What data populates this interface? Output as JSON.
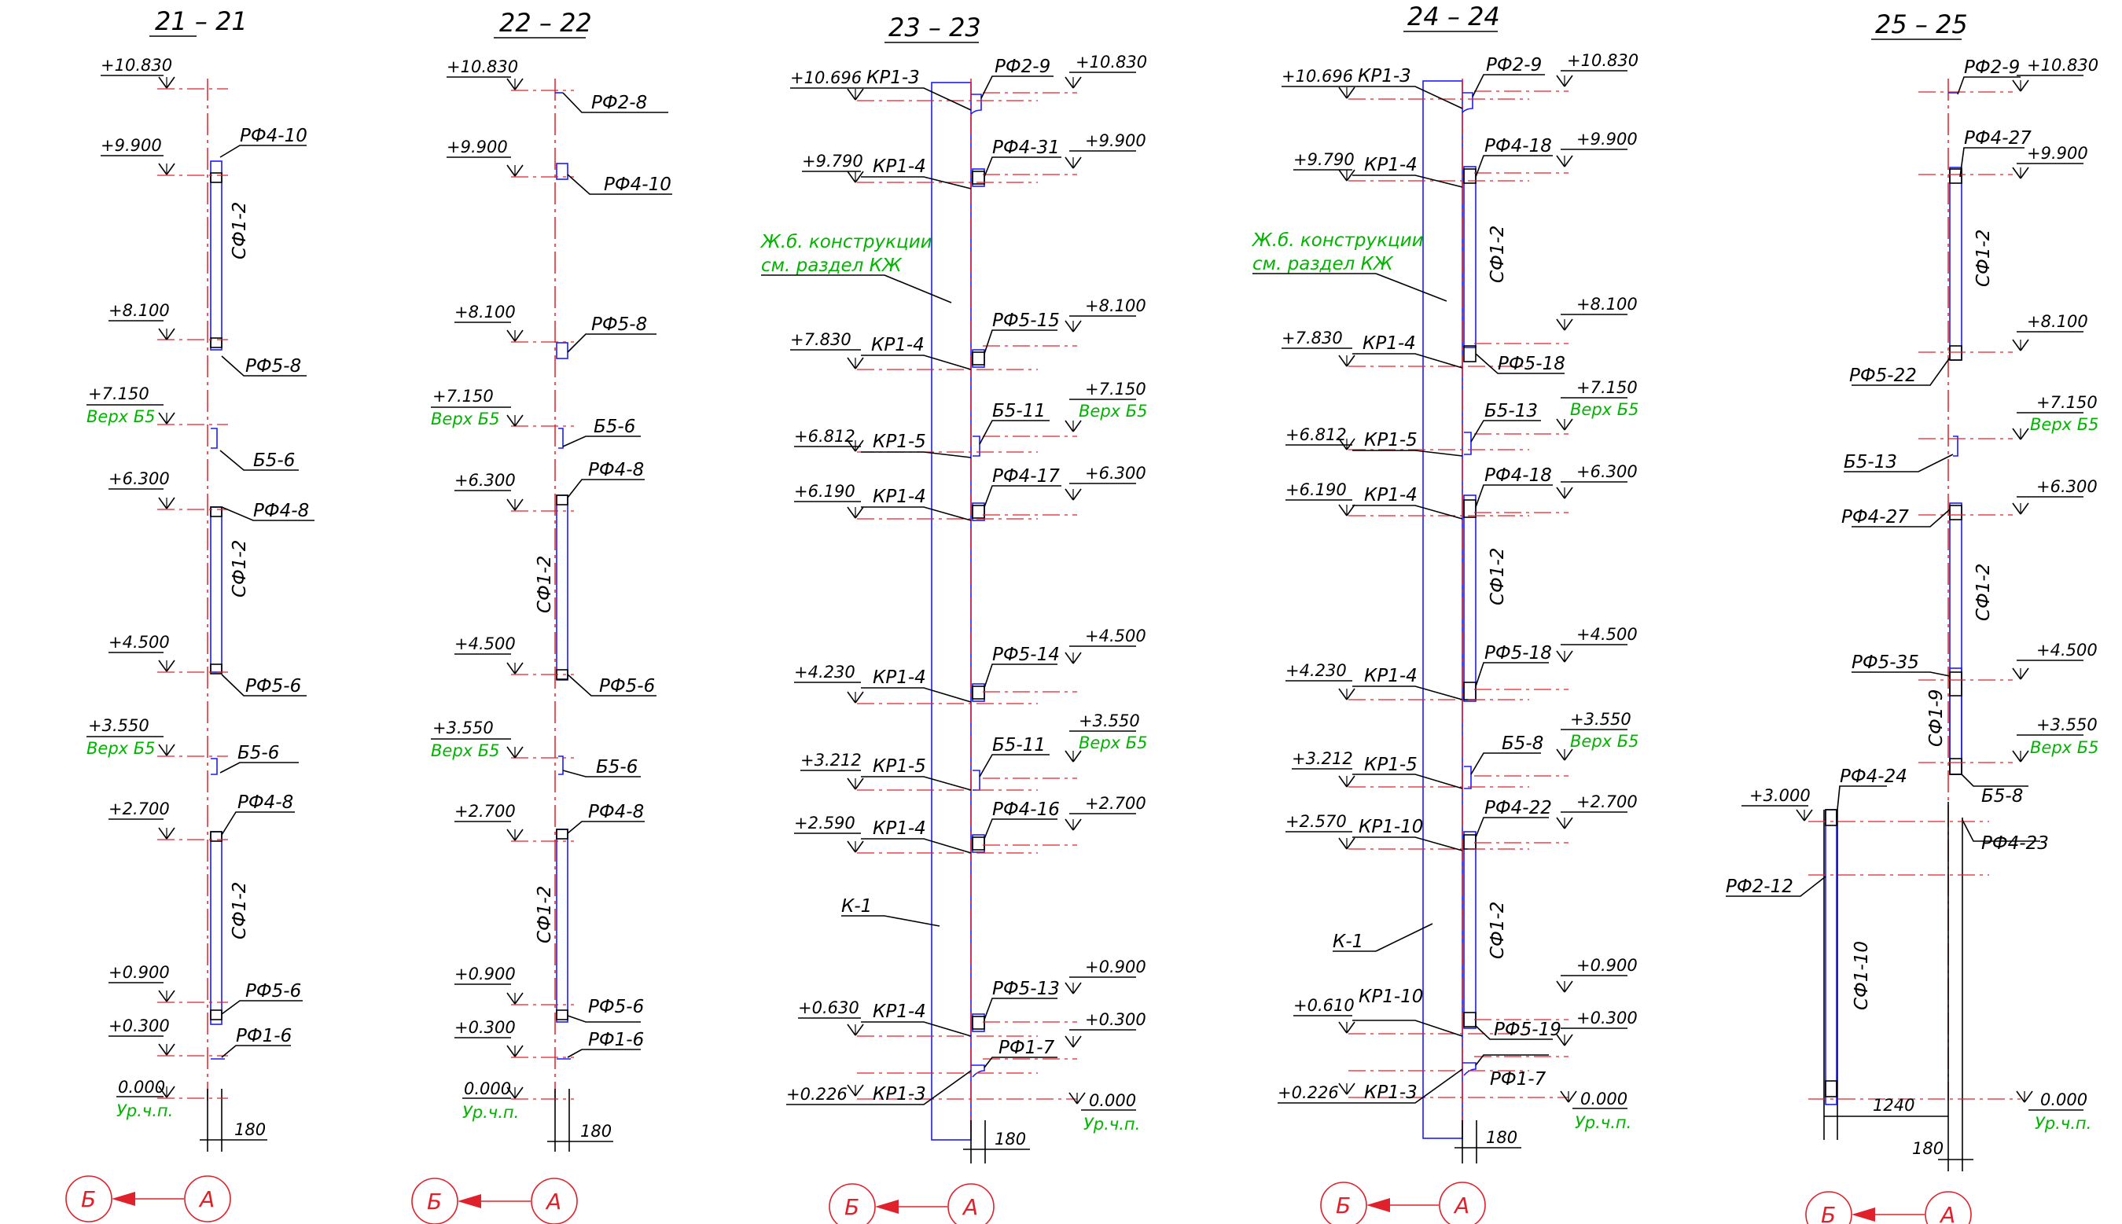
{
  "sections": [
    {
      "id": "21",
      "title": "21 – 21",
      "levels": [
        "+10.830",
        "+9.900",
        "+8.100",
        "+7.150",
        "+6.300",
        "+4.500",
        "+3.550",
        "+2.700",
        "+0.900",
        "+0.300",
        "0.000"
      ],
      "notes": [
        "Верх Б5",
        "Верх Б5",
        "Ур.ч.п."
      ],
      "labels": [
        "РФ4-10",
        "СФ1-2",
        "РФ5-8",
        "Б5-6",
        "РФ4-8",
        "СФ1-2",
        "РФ5-6",
        "Б5-6",
        "РФ4-8",
        "СФ1-2",
        "РФ5-6",
        "РФ1-6"
      ],
      "dims": [
        "180"
      ],
      "axes": [
        "Б",
        "А"
      ]
    },
    {
      "id": "22",
      "title": "22 – 22",
      "levels": [
        "+10.830",
        "+9.900",
        "+8.100",
        "+7.150",
        "+6.300",
        "+4.500",
        "+3.550",
        "+2.700",
        "+0.900",
        "+0.300",
        "0.000"
      ],
      "notes": [
        "Верх Б5",
        "Верх Б5",
        "Ур.ч.п."
      ],
      "labels": [
        "РФ2-8",
        "РФ4-10",
        "РФ5-8",
        "Б5-6",
        "РФ4-8",
        "СФ1-2",
        "РФ5-6",
        "Б5-6",
        "РФ4-8",
        "СФ1-2",
        "РФ5-6",
        "РФ1-6"
      ],
      "dims": [
        "180"
      ],
      "axes": [
        "Б",
        "А"
      ]
    },
    {
      "id": "23",
      "title": "23 – 23",
      "levels_left": [
        "+10.696",
        "+9.790",
        "+7.830",
        "+6.812",
        "+6.190",
        "+4.230",
        "+3.212",
        "+2.590",
        "+0.630",
        "+0.226"
      ],
      "levels_right": [
        "+10.830",
        "+9.900",
        "+8.100",
        "+7.150",
        "+6.300",
        "+4.500",
        "+3.550",
        "+2.700",
        "+0.900",
        "+0.300",
        "0.000"
      ],
      "kr": [
        "КР1-3",
        "КР1-4",
        "КР1-4",
        "КР1-5",
        "КР1-4",
        "КР1-4",
        "КР1-5",
        "КР1-4",
        "КР1-4",
        "КР1-3"
      ],
      "labels": [
        "РФ2-9",
        "РФ4-31",
        "РФ5-15",
        "Б5-11",
        "РФ4-17",
        "РФ5-14",
        "Б5-11",
        "РФ4-16",
        "РФ5-13",
        "РФ1-7"
      ],
      "notes": [
        "Ж.б. конструкции",
        "см. раздел КЖ",
        "Верх Б5",
        "Верх Б5",
        "Ур.ч.п."
      ],
      "column": "К-1",
      "dims": [
        "180"
      ],
      "axes": [
        "Б",
        "А"
      ]
    },
    {
      "id": "24",
      "title": "24 – 24",
      "levels_left": [
        "+10.696",
        "+9.790",
        "+7.830",
        "+6.812",
        "+6.190",
        "+4.230",
        "+3.212",
        "+2.570",
        "+0.610",
        "+0.226"
      ],
      "levels_right": [
        "+10.830",
        "+9.900",
        "+8.100",
        "+7.150",
        "+6.300",
        "+4.500",
        "+3.550",
        "+2.700",
        "+0.900",
        "+0.300",
        "0.000"
      ],
      "kr": [
        "КР1-3",
        "КР1-4",
        "КР1-4",
        "КР1-5",
        "КР1-4",
        "КР1-4",
        "КР1-5",
        "КР1-10",
        "КР1-10",
        "КР1-3"
      ],
      "labels": [
        "РФ2-9",
        "РФ4-18",
        "СФ1-2",
        "РФ5-18",
        "Б5-13",
        "РФ4-18",
        "СФ1-2",
        "РФ5-18",
        "Б5-8",
        "РФ4-22",
        "СФ1-2",
        "РФ5-19",
        "РФ1-7"
      ],
      "notes": [
        "Ж.б. конструкции",
        "см. раздел КЖ",
        "Верх Б5",
        "Верх Б5",
        "Ур.ч.п."
      ],
      "column": "К-1",
      "dims": [
        "180"
      ],
      "axes": [
        "Б",
        "А"
      ]
    },
    {
      "id": "25",
      "title": "25 – 25",
      "levels": [
        "+10.830",
        "+9.900",
        "+8.100",
        "+7.150",
        "+6.300",
        "+4.500",
        "+3.550",
        "+3.000",
        "0.000"
      ],
      "notes": [
        "Верх Б5",
        "Верх Б5",
        "Ур.ч.п."
      ],
      "labels": [
        "РФ2-9",
        "РФ4-27",
        "СФ1-2",
        "РФ5-22",
        "Б5-13",
        "РФ4-27",
        "СФ1-2",
        "РФ5-35",
        "СФ1-9",
        "Б5-8",
        "РФ4-24",
        "РФ4-23",
        "РФ2-12",
        "СФ1-10"
      ],
      "dims": [
        "1240",
        "180"
      ],
      "axes": [
        "Б",
        "А"
      ]
    }
  ]
}
